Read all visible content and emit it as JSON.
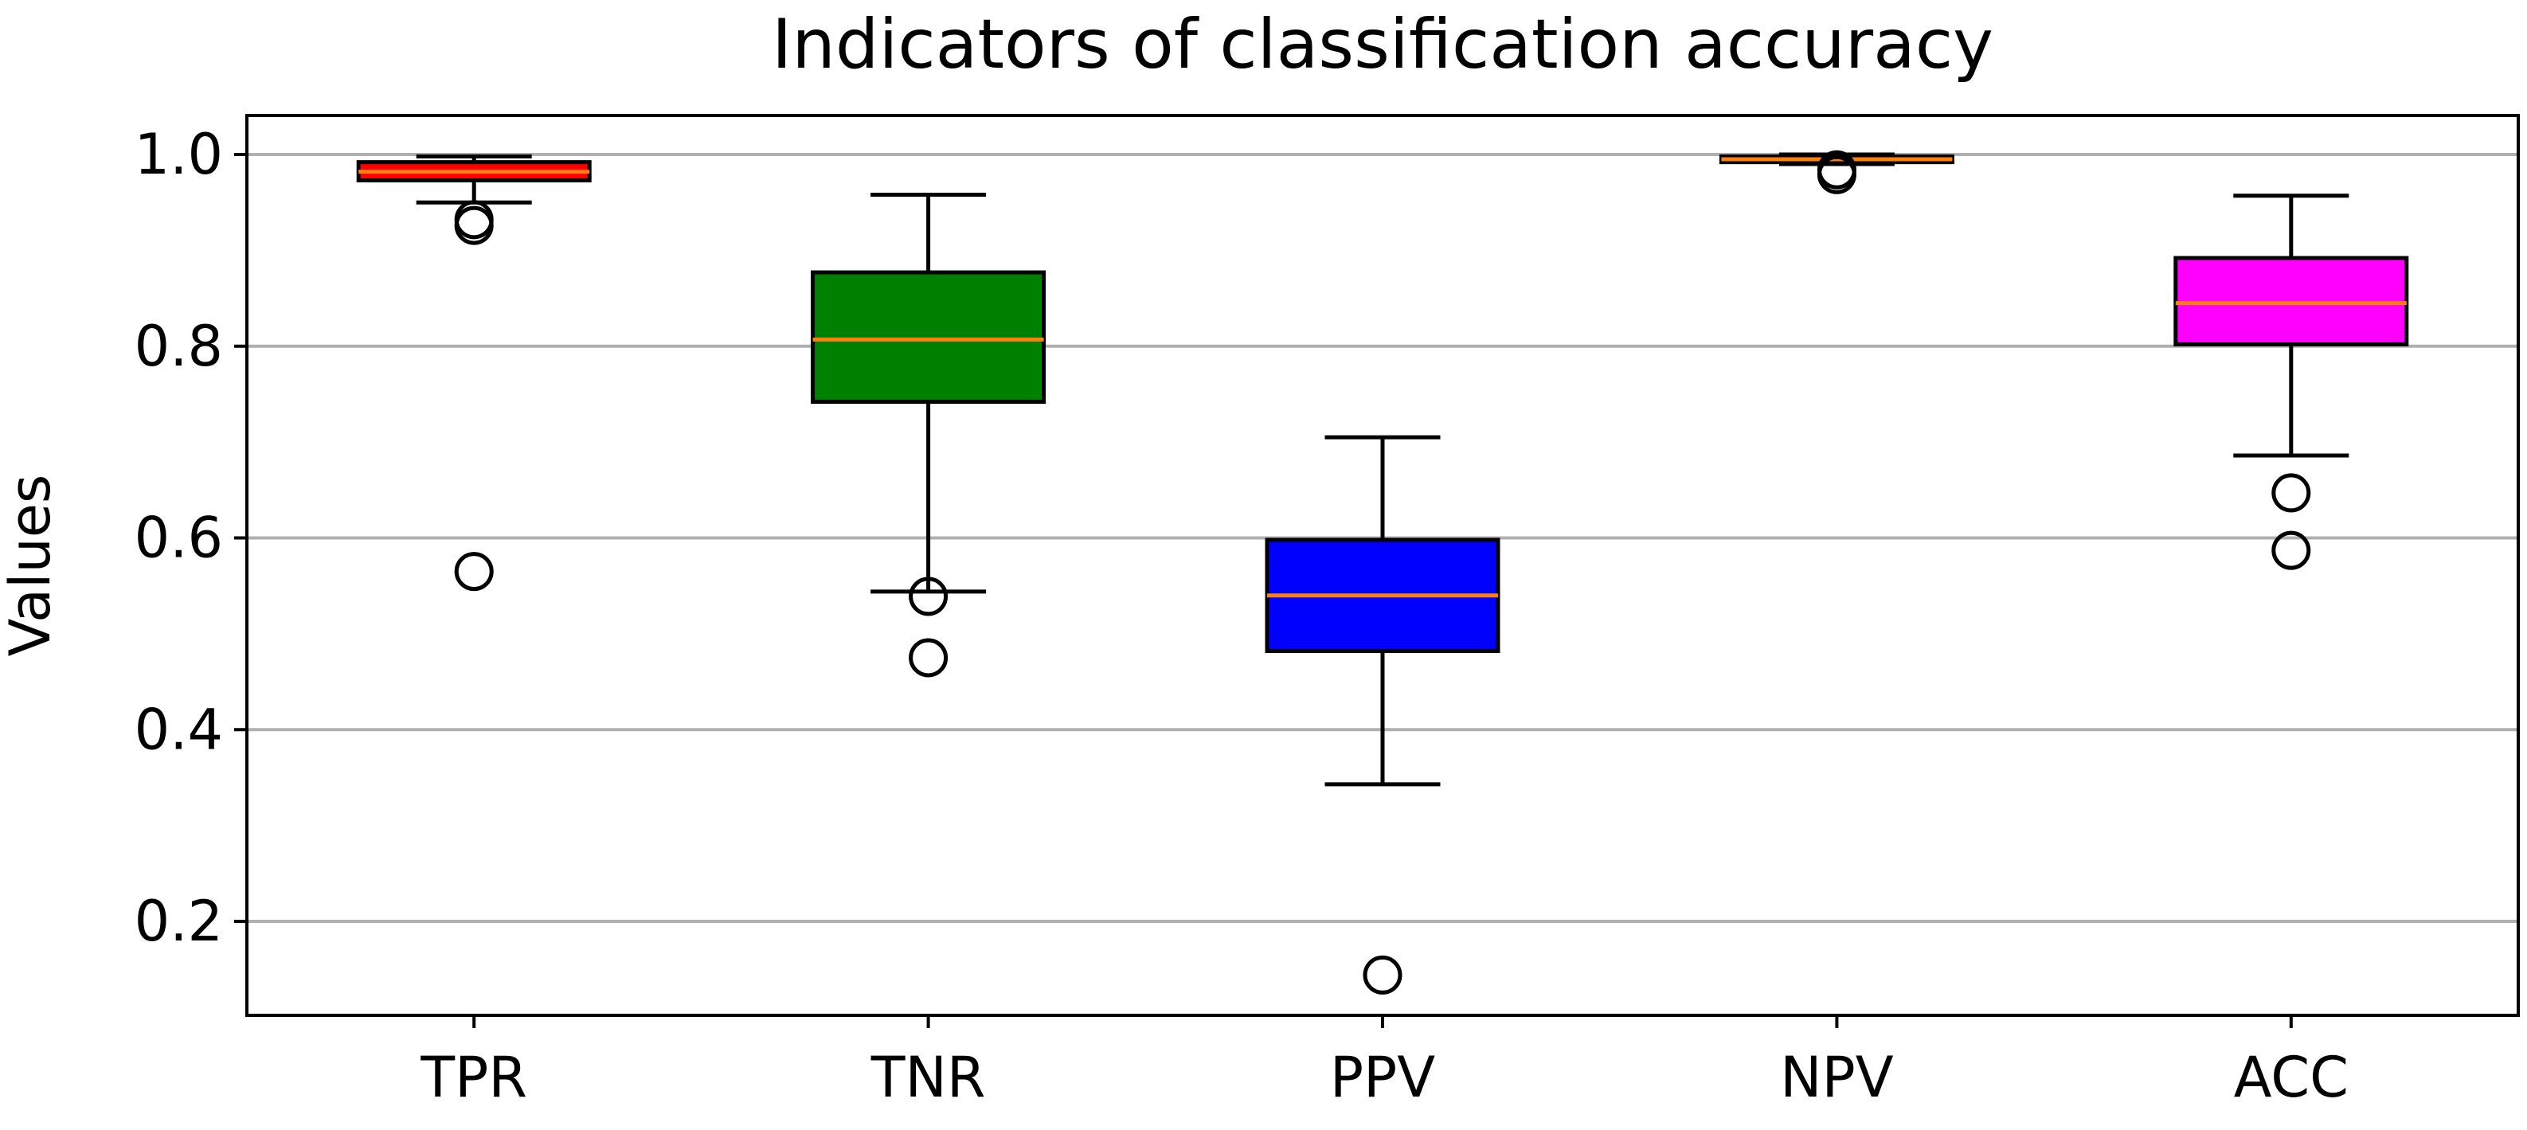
{
  "chart_data": {
    "type": "boxplot",
    "title": "Indicators of classification accuracy",
    "xlabel": "",
    "ylabel": "Values",
    "ylim": [
      0.1,
      1.04
    ],
    "yticks": [
      0.2,
      0.4,
      0.6,
      0.8,
      1.0
    ],
    "ytick_labels": [
      "0.2",
      "0.4",
      "0.6",
      "0.8",
      "1.0"
    ],
    "grid": "horizontal",
    "categories": [
      "TPR",
      "TNR",
      "PPV",
      "NPV",
      "ACC"
    ],
    "boxes": [
      {
        "label": "TPR",
        "color": "#ff0000",
        "whisker_low": 0.95,
        "q1": 0.973,
        "median": 0.982,
        "q3": 0.992,
        "whisker_high": 0.998,
        "outliers": [
          0.932,
          0.926,
          0.565
        ]
      },
      {
        "label": "TNR",
        "color": "#008000",
        "whisker_low": 0.544,
        "q1": 0.742,
        "median": 0.807,
        "q3": 0.877,
        "whisker_high": 0.958,
        "outliers": [
          0.539,
          0.475
        ]
      },
      {
        "label": "PPV",
        "color": "#0000ff",
        "whisker_low": 0.343,
        "q1": 0.482,
        "median": 0.54,
        "q3": 0.598,
        "whisker_high": 0.705,
        "outliers": [
          0.144
        ]
      },
      {
        "label": "NPV",
        "color": "#ffff00",
        "whisker_low": 0.99,
        "q1": 0.992,
        "median": 0.995,
        "q3": 0.998,
        "whisker_high": 1.0,
        "outliers": [
          0.984,
          0.979
        ]
      },
      {
        "label": "ACC",
        "color": "#ff00ff",
        "whisker_low": 0.686,
        "q1": 0.802,
        "median": 0.845,
        "q3": 0.892,
        "whisker_high": 0.957,
        "outliers": [
          0.647,
          0.587
        ]
      }
    ],
    "median_color": "#ff7f0e",
    "grid_color": "#b0b0b0"
  }
}
